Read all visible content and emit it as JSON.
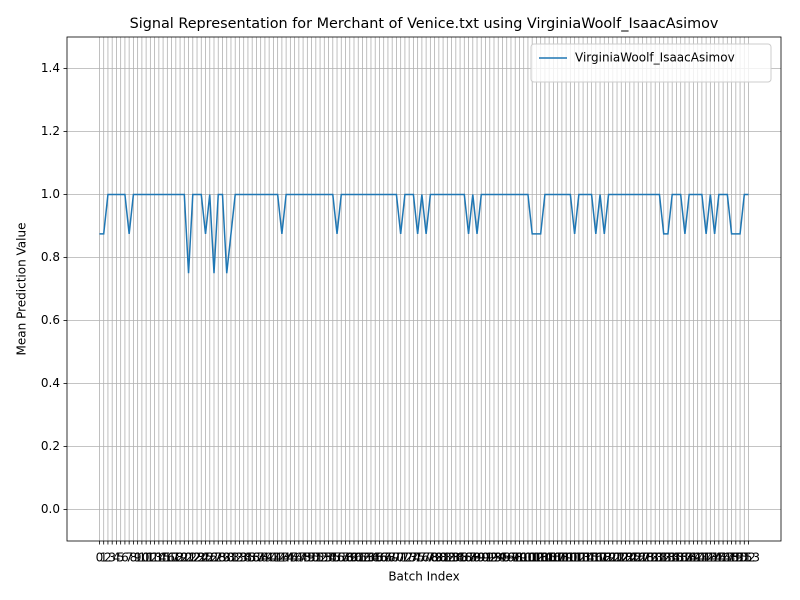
{
  "chart_data": {
    "type": "line",
    "title": "Signal Representation for Merchant of Venice.txt using VirginiaWoolf_IsaacAsimov",
    "x_label": "Batch Index",
    "y_label": "Mean Prediction Value",
    "x": [
      0,
      1,
      2,
      3,
      4,
      5,
      6,
      7,
      8,
      9,
      10,
      11,
      12,
      13,
      14,
      15,
      16,
      17,
      18,
      19,
      20,
      21,
      22,
      23,
      24,
      25,
      26,
      27,
      28,
      29,
      30,
      31,
      32,
      33,
      34,
      35,
      36,
      37,
      38,
      39,
      40,
      41,
      42,
      43,
      44,
      45,
      46,
      47,
      48,
      49,
      50,
      51,
      52,
      53,
      54,
      55,
      56,
      57,
      58,
      59,
      60,
      61,
      62,
      63,
      64,
      65,
      66,
      67,
      68,
      69,
      70,
      71,
      72,
      73,
      74,
      75,
      76,
      77,
      78,
      79,
      80,
      81,
      82,
      83,
      84,
      85,
      86,
      87,
      88,
      89,
      90,
      91,
      92,
      93,
      94,
      95,
      96,
      97,
      98,
      99,
      100,
      101,
      102,
      103,
      104,
      105,
      106,
      107,
      108,
      109,
      110,
      111,
      112,
      113,
      114,
      115,
      116,
      117,
      118,
      119,
      120,
      121,
      122,
      123,
      124,
      125,
      126,
      127,
      128,
      129,
      130,
      131,
      132,
      133,
      134,
      135,
      136,
      137,
      138,
      139,
      140,
      141,
      142,
      143,
      144,
      145,
      146,
      147,
      148,
      149,
      150,
      151,
      152,
      153
    ],
    "series": [
      {
        "name": "VirginiaWoolf_IsaacAsimov",
        "color": "#1f77b4",
        "values": [
          0.875,
          0.875,
          1,
          1,
          1,
          1,
          1,
          0.875,
          1,
          1,
          1,
          1,
          1,
          1,
          1,
          1,
          1,
          1,
          1,
          1,
          1,
          0.75,
          1,
          1,
          1,
          0.875,
          1,
          0.75,
          1,
          1,
          0.75,
          0.875,
          1,
          1,
          1,
          1,
          1,
          1,
          1,
          1,
          1,
          1,
          1,
          0.875,
          1,
          1,
          1,
          1,
          1,
          1,
          1,
          1,
          1,
          1,
          1,
          1,
          0.875,
          1,
          1,
          1,
          1,
          1,
          1,
          1,
          1,
          1,
          1,
          1,
          1,
          1,
          1,
          0.875,
          1,
          1,
          1,
          0.875,
          1,
          0.875,
          1,
          1,
          1,
          1,
          1,
          1,
          1,
          1,
          1,
          0.875,
          1,
          0.875,
          1,
          1,
          1,
          1,
          1,
          1,
          1,
          1,
          1,
          1,
          1,
          1,
          0.875,
          0.875,
          0.875,
          1,
          1,
          1,
          1,
          1,
          1,
          1,
          0.875,
          1,
          1,
          1,
          1,
          0.875,
          1,
          0.875,
          1,
          1,
          1,
          1,
          1,
          1,
          1,
          1,
          1,
          1,
          1,
          1,
          1,
          0.875,
          0.875,
          1,
          1,
          1,
          0.875,
          1,
          1,
          1,
          1,
          0.875,
          1,
          0.875,
          1,
          1,
          1,
          0.875,
          0.875,
          0.875,
          1,
          1
        ]
      }
    ],
    "xlim": [
      -7.65,
      160.65
    ],
    "xticks": [
      0,
      1,
      2,
      3,
      4,
      5,
      6,
      7,
      8,
      9,
      10,
      11,
      12,
      13,
      14,
      15,
      16,
      17,
      18,
      19,
      20,
      21,
      22,
      23,
      24,
      25,
      26,
      27,
      28,
      29,
      30,
      31,
      32,
      33,
      34,
      35,
      36,
      37,
      38,
      39,
      40,
      41,
      42,
      43,
      44,
      45,
      46,
      47,
      48,
      49,
      50,
      51,
      52,
      53,
      54,
      55,
      56,
      57,
      58,
      59,
      60,
      61,
      62,
      63,
      64,
      65,
      66,
      67,
      68,
      69,
      70,
      71,
      72,
      73,
      74,
      75,
      76,
      77,
      78,
      79,
      80,
      81,
      82,
      83,
      84,
      85,
      86,
      87,
      88,
      89,
      90,
      91,
      92,
      93,
      94,
      95,
      96,
      97,
      98,
      99,
      100,
      101,
      102,
      103,
      104,
      105,
      106,
      107,
      108,
      109,
      110,
      111,
      112,
      113,
      114,
      115,
      116,
      117,
      118,
      119,
      120,
      121,
      122,
      123,
      124,
      125,
      126,
      127,
      128,
      129,
      130,
      131,
      132,
      133,
      134,
      135,
      136,
      137,
      138,
      139,
      140,
      141,
      142,
      143,
      144,
      145,
      146,
      147,
      148,
      149,
      150,
      151,
      152,
      153
    ],
    "ylim": [
      -0.1,
      1.5
    ],
    "yticks": [
      {
        "value": 0,
        "label": "0.0"
      },
      {
        "value": 0.2,
        "label": "0.2"
      },
      {
        "value": 0.4,
        "label": "0.4"
      },
      {
        "value": 0.6,
        "label": "0.6"
      },
      {
        "value": 0.8,
        "label": "0.8"
      },
      {
        "value": 1,
        "label": "1.0"
      },
      {
        "value": 1.2,
        "label": "1.2"
      },
      {
        "value": 1.4,
        "label": "1.4"
      }
    ],
    "grid": true,
    "legend": "upper right"
  }
}
